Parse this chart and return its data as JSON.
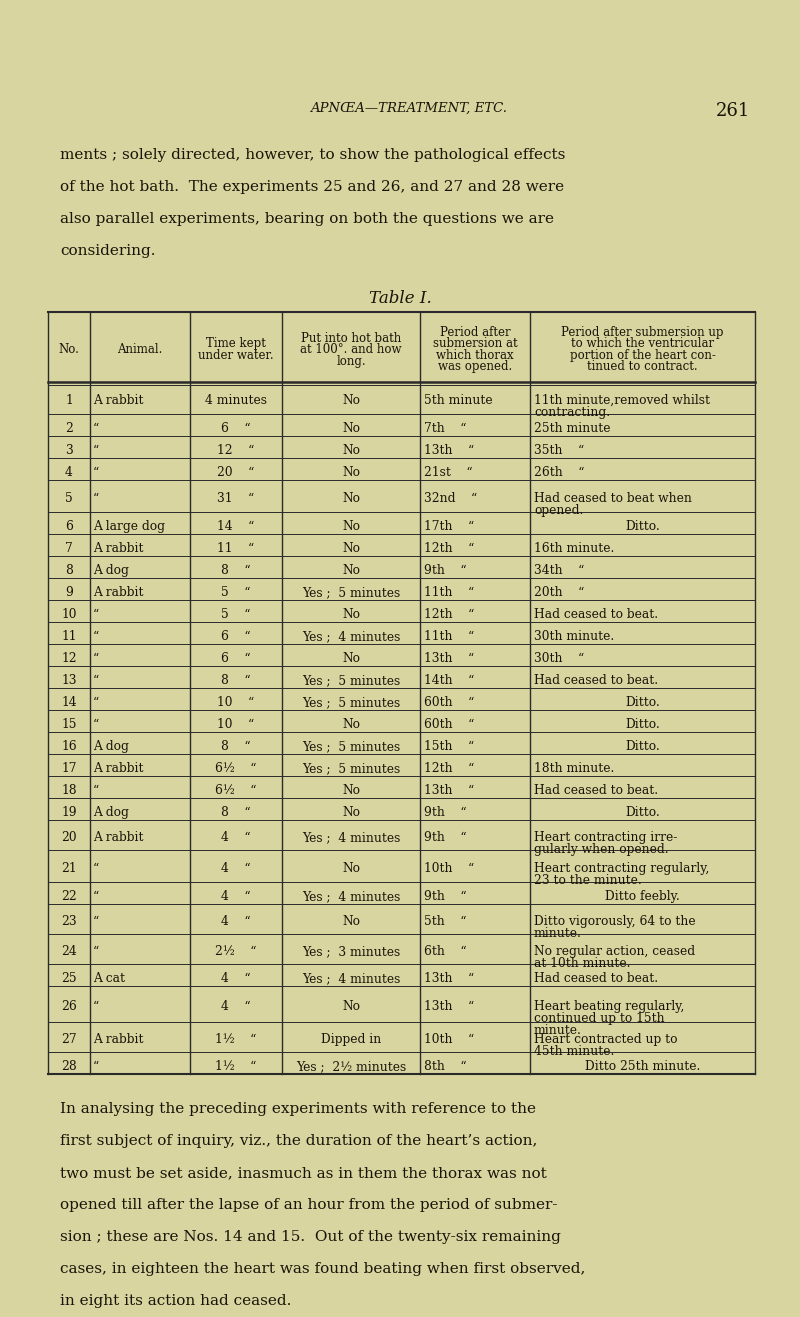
{
  "bg_color": "#d9d5a0",
  "text_color": "#1a1408",
  "header_title": "APNŒA—TREATMENT, ETC.",
  "page_num": "261",
  "intro_lines": [
    "ments ; solely directed, however, to show the pathological effects",
    "of the hot bath.  The experiments 25 and 26, and 27 and 28 were",
    "also parallel experiments, bearing on both the questions we are",
    "considering."
  ],
  "table_title": "Table I.",
  "rows": [
    [
      "1",
      "A rabbit",
      "4 minutes",
      "No",
      "5th minute",
      "11th minute,removed whilst\ncontracting."
    ],
    [
      "2",
      "“",
      "6    “",
      "No",
      "7th    “",
      "25th minute"
    ],
    [
      "3",
      "“",
      "12    “",
      "No",
      "13th    “",
      "35th    “"
    ],
    [
      "4",
      "“",
      "20    “",
      "No",
      "21st    “",
      "26th    “"
    ],
    [
      "5",
      "“",
      "31    “",
      "No",
      "32nd    “",
      "Had ceased to beat when\nopened."
    ],
    [
      "6",
      "A large dog",
      "14    “",
      "No",
      "17th    “",
      "Ditto."
    ],
    [
      "7",
      "A rabbit",
      "11    “",
      "No",
      "12th    “",
      "16th minute."
    ],
    [
      "8",
      "A dog",
      "8    “",
      "No",
      "9th    “",
      "34th    “"
    ],
    [
      "9",
      "A rabbit",
      "5    “",
      "Yes ;  5 minutes",
      "11th    “",
      "20th    “"
    ],
    [
      "10",
      "“",
      "5    “",
      "No",
      "12th    “",
      "Had ceased to beat."
    ],
    [
      "11",
      "“",
      "6    “",
      "Yes ;  4 minutes",
      "11th    “",
      "30th minute."
    ],
    [
      "12",
      "“",
      "6    “",
      "No",
      "13th    “",
      "30th    “"
    ],
    [
      "13",
      "“",
      "8    “",
      "Yes ;  5 minutes",
      "14th    “",
      "Had ceased to beat."
    ],
    [
      "14",
      "“",
      "10    “",
      "Yes ;  5 minutes",
      "60th    “",
      "Ditto."
    ],
    [
      "15",
      "“",
      "10    “",
      "No",
      "60th    “",
      "Ditto."
    ],
    [
      "16",
      "A dog",
      "8    “",
      "Yes ;  5 minutes",
      "15th    “",
      "Ditto."
    ],
    [
      "17",
      "A rabbit",
      "6½    “",
      "Yes ;  5 minutes",
      "12th    “",
      "18th minute."
    ],
    [
      "18",
      "“",
      "6½    “",
      "No",
      "13th    “",
      "Had ceased to beat."
    ],
    [
      "19",
      "A dog",
      "8    “",
      "No",
      "9th    “",
      "Ditto."
    ],
    [
      "20",
      "A rabbit",
      "4    “",
      "Yes ;  4 minutes",
      "9th    “",
      "Heart contracting irre-\ngularly when opened."
    ],
    [
      "21",
      "“",
      "4    “",
      "No",
      "10th    “",
      "Heart contracting regularly,\n23 to the minute."
    ],
    [
      "22",
      "“",
      "4    “",
      "Yes ;  4 minutes",
      "9th    “",
      "Ditto feebly."
    ],
    [
      "23",
      "“",
      "4    “",
      "No",
      "5th    “",
      "Ditto vigorously, 64 to the\nminute."
    ],
    [
      "24",
      "“",
      "2½    “",
      "Yes ;  3 minutes",
      "6th    “",
      "No regular action, ceased\nat 10th minute."
    ],
    [
      "25",
      "A cat",
      "4    “",
      "Yes ;  4 minutes",
      "13th    “",
      "Had ceased to beat."
    ],
    [
      "26",
      "“",
      "4    “",
      "No",
      "13th    “",
      "Heart beating regularly,\ncontinued up to 15th\nminute."
    ],
    [
      "27",
      "A rabbit",
      "1½    “",
      "Dipped in",
      "10th    “",
      "Heart contracted up to\n45th minute."
    ],
    [
      "28",
      "“",
      "1½    “",
      "Yes ;  2½ minutes",
      "8th    “",
      "Ditto 25th minute."
    ]
  ],
  "footer_lines": [
    "In analysing the preceding experiments with reference to the",
    "first subject of inquiry, viz., the duration of the heart’s action,",
    "two must be set aside, inasmuch as in them the thorax was not",
    "opened till after the lapse of an hour from the period of submer-",
    "sion ; these are Nos. 14 and 15.  Out of the twenty-six remaining",
    "cases, in eighteen the heart was found beating when first observed,",
    "in eight its action had ceased."
  ]
}
